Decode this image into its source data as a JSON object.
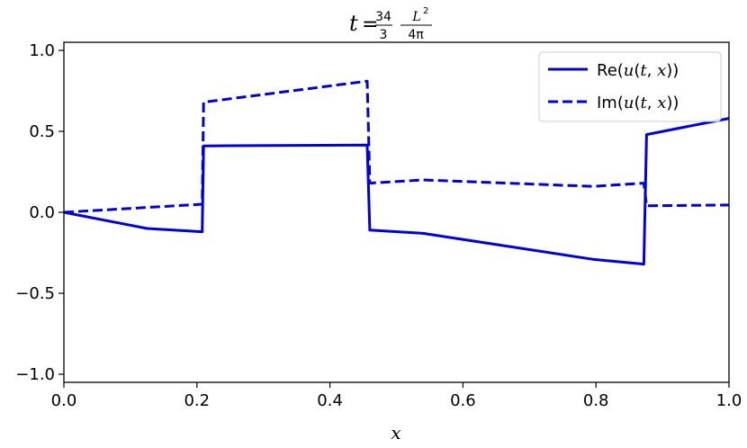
{
  "chart_data": {
    "type": "line",
    "title": {
      "prefix": "t",
      "equals": "=",
      "frac1_num": "34",
      "frac1_den": "3",
      "frac2_num": "L",
      "frac2_num_sup": "2",
      "frac2_den": "4π"
    },
    "xlabel": "x",
    "ylabel": "",
    "xlim": [
      0.0,
      1.0
    ],
    "ylim": [
      -1.05,
      1.05
    ],
    "xticks": [
      0.0,
      0.2,
      0.4,
      0.6,
      0.8,
      1.0
    ],
    "xtick_labels": [
      "0.0",
      "0.2",
      "0.4",
      "0.6",
      "0.8",
      "1.0"
    ],
    "yticks": [
      1.0,
      0.5,
      0.0,
      -0.5,
      -1.0
    ],
    "ytick_labels": [
      "1.0",
      "0.5",
      "0.0",
      "−0.5",
      "−1.0"
    ],
    "grid": false,
    "legend_position": "top-right",
    "series": [
      {
        "name": "Re(u(t,x))",
        "legend": {
          "pre": "Re(",
          "u": "u",
          "mid": "(",
          "t": "t",
          "comma": ", ",
          "x": "x",
          "post": "))"
        },
        "style": "solid",
        "color": "#0000dd",
        "x": [
          0.0,
          0.125,
          0.208,
          0.21,
          0.456,
          0.46,
          0.54,
          0.795,
          0.872,
          0.876,
          1.0
        ],
        "y": [
          0.0,
          -0.1,
          -0.12,
          0.41,
          0.415,
          -0.11,
          -0.13,
          -0.29,
          -0.32,
          0.48,
          0.58
        ]
      },
      {
        "name": "Im(u(t,x))",
        "legend": {
          "pre": "Im(",
          "u": "u",
          "mid": "(",
          "t": "t",
          "comma": ", ",
          "x": "x",
          "post": "))"
        },
        "style": "dashed",
        "color": "#0000dd",
        "x": [
          0.0,
          0.208,
          0.21,
          0.456,
          0.46,
          0.54,
          0.795,
          0.872,
          0.876,
          1.0
        ],
        "y": [
          0.0,
          0.05,
          0.68,
          0.81,
          0.18,
          0.2,
          0.16,
          0.18,
          0.04,
          0.045
        ]
      }
    ]
  }
}
